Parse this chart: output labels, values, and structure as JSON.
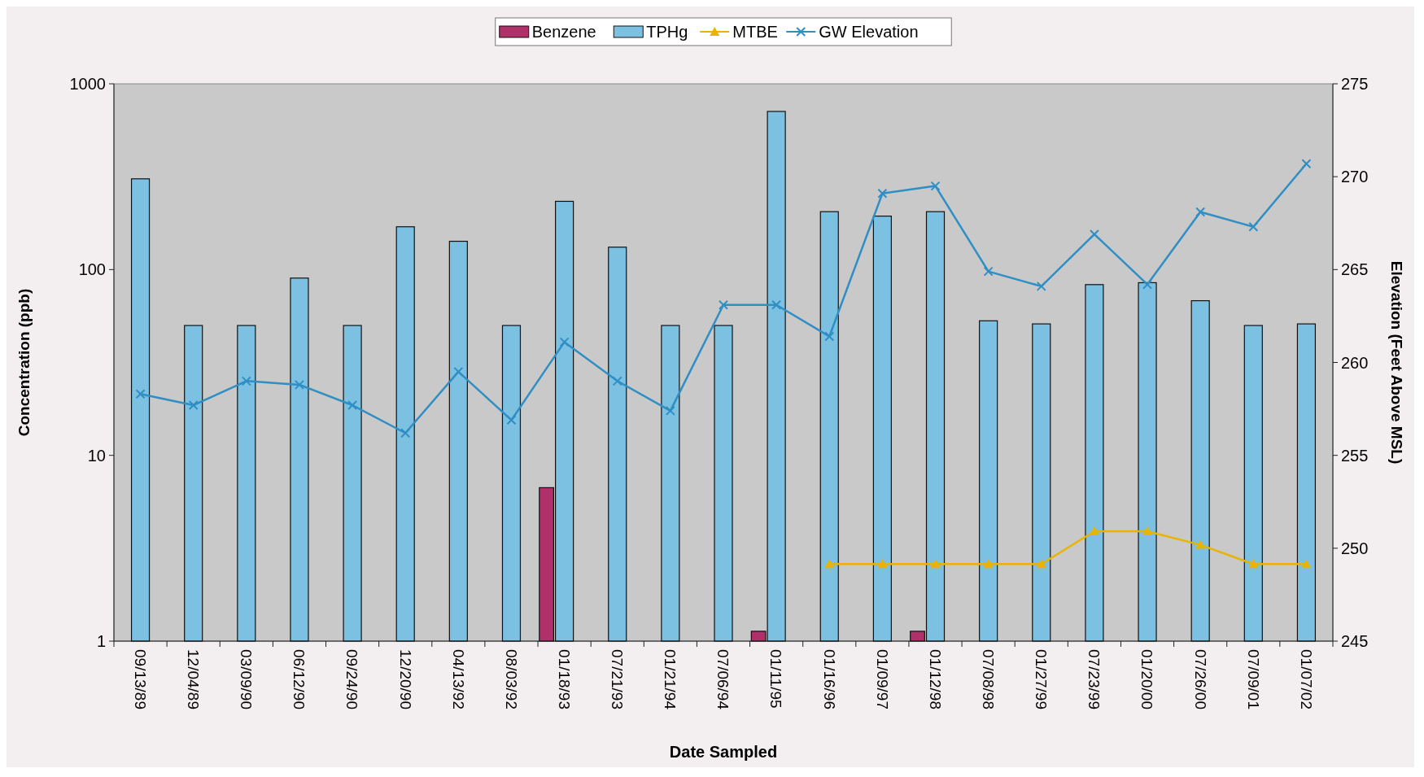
{
  "chart_data": {
    "type": "bar",
    "xlabel": "Date Sampled",
    "ylabel": "Concentration (ppb)",
    "y2label": "Elevation (Feet Above MSL)",
    "categories": [
      "09/13/89",
      "12/04/89",
      "03/09/90",
      "06/12/90",
      "09/24/90",
      "12/20/90",
      "04/13/92",
      "08/03/92",
      "01/18/93",
      "07/21/93",
      "01/21/94",
      "07/06/94",
      "01/11/95",
      "01/16/96",
      "01/09/97",
      "01/12/98",
      "07/08/98",
      "01/27/99",
      "07/23/99",
      "01/20/00",
      "07/26/00",
      "07/09/01",
      "01/07/02"
    ],
    "series": [
      {
        "name": "Benzene",
        "color": "#b0306a",
        "values": [
          null,
          null,
          null,
          null,
          null,
          null,
          null,
          null,
          6.7,
          null,
          null,
          null,
          1.13,
          null,
          null,
          1.13,
          null,
          null,
          null,
          null,
          null,
          null,
          null
        ]
      },
      {
        "name": "TPHg",
        "color": "#7cc0e2",
        "values": [
          308,
          50,
          50,
          90,
          50,
          170,
          142,
          50,
          233,
          132,
          50,
          50,
          710,
          205,
          194,
          205,
          53,
          51,
          83,
          85,
          68,
          50,
          51
        ]
      },
      {
        "name": "MTBE",
        "type": "line",
        "color": "#e8b400",
        "marker": "triangle",
        "values": [
          null,
          null,
          null,
          null,
          null,
          null,
          null,
          null,
          null,
          null,
          null,
          null,
          null,
          2.6,
          2.6,
          2.6,
          2.6,
          2.6,
          3.9,
          3.9,
          3.3,
          2.6,
          2.6
        ]
      },
      {
        "name": "GW Elevation",
        "type": "line",
        "axis": "y2",
        "color": "#2f8fc4",
        "marker": "cross",
        "values": [
          258.3,
          257.7,
          259.0,
          258.8,
          257.7,
          256.2,
          259.5,
          256.9,
          261.1,
          259.0,
          257.4,
          263.1,
          263.1,
          261.4,
          269.1,
          269.5,
          264.9,
          264.1,
          266.9,
          264.2,
          268.1,
          267.3,
          270.7
        ]
      }
    ],
    "log": "y",
    "ylim": [
      1,
      1000
    ],
    "yticks": [
      1,
      10,
      100,
      1000
    ],
    "y2lim": [
      245,
      275
    ],
    "y2ticks": [
      245,
      250,
      255,
      260,
      265,
      270,
      275
    ],
    "grid": false,
    "legend": "top"
  }
}
